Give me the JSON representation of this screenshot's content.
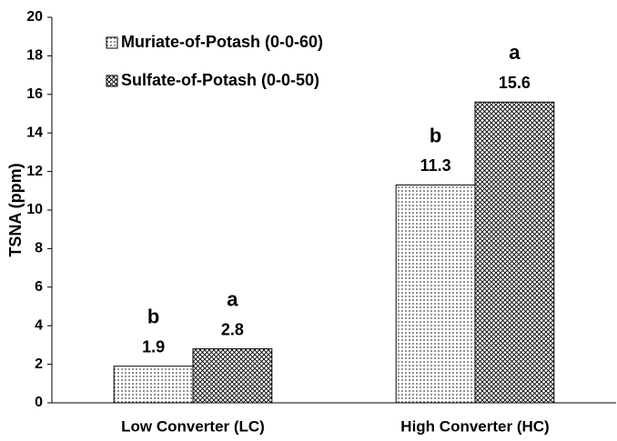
{
  "chart_data": {
    "type": "bar",
    "ylabel": "TSNA (ppm)",
    "categories": [
      "Low Converter (LC)",
      "High Converter (HC)"
    ],
    "series": [
      {
        "name": "Muriate-of-Potash (0-0-60)",
        "color": "#000000",
        "pattern": "dots",
        "values": [
          1.9,
          11.3
        ],
        "letters": [
          "b",
          "b"
        ]
      },
      {
        "name": "Sulfate-of-Potash (0-0-50)",
        "color": "#000000",
        "pattern": "crosshatch",
        "values": [
          2.8,
          15.6
        ],
        "letters": [
          "a",
          "a"
        ]
      }
    ],
    "ylim": [
      0,
      20
    ],
    "yticks": [
      0,
      2,
      4,
      6,
      8,
      10,
      12,
      14,
      16,
      18,
      20
    ],
    "grid": false,
    "legend": "upper left"
  }
}
